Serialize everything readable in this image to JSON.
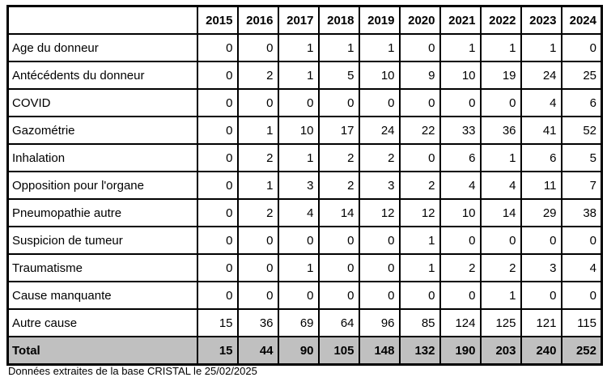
{
  "table": {
    "columns": [
      "2015",
      "2016",
      "2017",
      "2018",
      "2019",
      "2020",
      "2021",
      "2022",
      "2023",
      "2024"
    ],
    "rows": [
      {
        "label": "Age du donneur",
        "values": [
          0,
          0,
          1,
          1,
          1,
          0,
          1,
          1,
          1,
          0
        ]
      },
      {
        "label": "Antécédents du donneur",
        "values": [
          0,
          2,
          1,
          5,
          10,
          9,
          10,
          19,
          24,
          25
        ]
      },
      {
        "label": "COVID",
        "values": [
          0,
          0,
          0,
          0,
          0,
          0,
          0,
          0,
          4,
          6
        ]
      },
      {
        "label": "Gazométrie",
        "values": [
          0,
          1,
          10,
          17,
          24,
          22,
          33,
          36,
          41,
          52
        ]
      },
      {
        "label": "Inhalation",
        "values": [
          0,
          2,
          1,
          2,
          2,
          0,
          6,
          1,
          6,
          5
        ]
      },
      {
        "label": "Opposition pour l'organe",
        "values": [
          0,
          1,
          3,
          2,
          3,
          2,
          4,
          4,
          11,
          7
        ]
      },
      {
        "label": "Pneumopathie autre",
        "values": [
          0,
          2,
          4,
          14,
          12,
          12,
          10,
          14,
          29,
          38
        ]
      },
      {
        "label": "Suspicion de tumeur",
        "values": [
          0,
          0,
          0,
          0,
          0,
          1,
          0,
          0,
          0,
          0
        ]
      },
      {
        "label": "Traumatisme",
        "values": [
          0,
          0,
          1,
          0,
          0,
          1,
          2,
          2,
          3,
          4
        ]
      },
      {
        "label": "Cause manquante",
        "values": [
          0,
          0,
          0,
          0,
          0,
          0,
          0,
          1,
          0,
          0
        ]
      },
      {
        "label": "Autre cause",
        "values": [
          15,
          36,
          69,
          64,
          96,
          85,
          124,
          125,
          121,
          115
        ]
      }
    ],
    "total": {
      "label": "Total",
      "values": [
        15,
        44,
        90,
        105,
        148,
        132,
        190,
        203,
        240,
        252
      ]
    }
  },
  "footer": {
    "note": "Données extraites de la base CRISTAL le 25/02/2025"
  },
  "colors": {
    "border": "#000000",
    "total_row_bg": "#c0c0c0",
    "background": "#ffffff"
  }
}
